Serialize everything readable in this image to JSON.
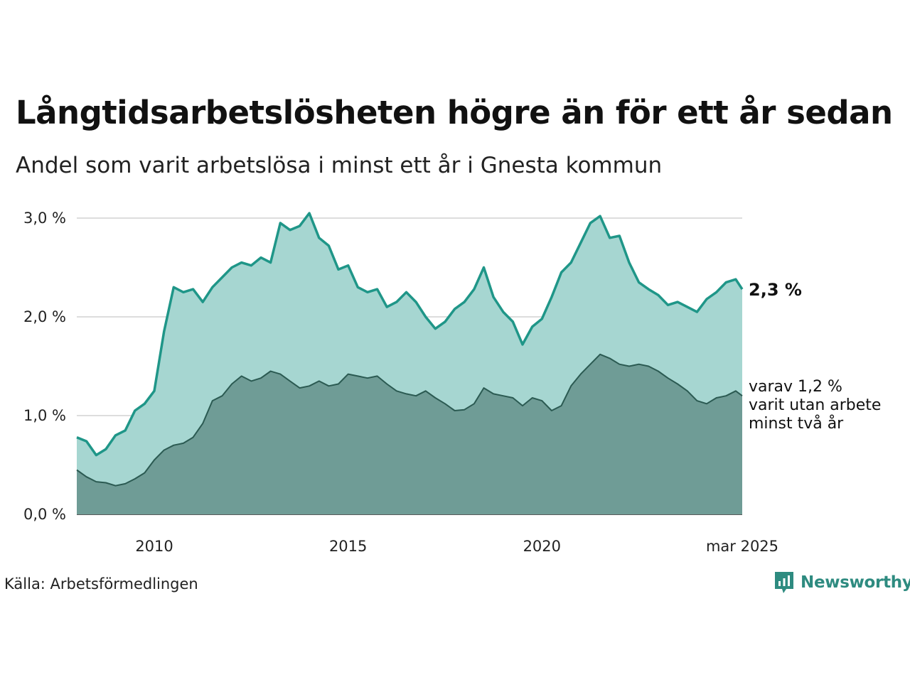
{
  "title": "Långtidsarbetslösheten högre än för ett år sedan",
  "subtitle": "Andel som varit arbetslösa i minst ett år i Gnesta kommun",
  "source": "Källa: Arbetsförmedlingen",
  "brand": "Newsworthy",
  "colors": {
    "main_line": "#1f9688",
    "main_fill": "#a6d6d1",
    "sub_line": "#2b5a52",
    "sub_fill": "#6f9c96",
    "grid": "#dddddd",
    "brand": "#2e8b80"
  },
  "end_labels": {
    "main": "2,3 %",
    "sub_lines": [
      "varav 1,2 %",
      "varit utan arbete",
      "minst två år"
    ]
  },
  "chart_data": {
    "type": "area",
    "x_start": "2008-01",
    "x_end": "2025-03",
    "frequency": "monthly",
    "ylim": [
      0,
      3.0
    ],
    "yticks": [
      {
        "value": 0,
        "label": "0,0 %"
      },
      {
        "value": 1,
        "label": "1,0 %"
      },
      {
        "value": 2,
        "label": "2,0 %"
      },
      {
        "value": 3,
        "label": "3,0 %"
      }
    ],
    "xticks": [
      {
        "date": "2010-01",
        "label": "2010"
      },
      {
        "date": "2015-01",
        "label": "2015"
      },
      {
        "date": "2020-01",
        "label": "2020"
      },
      {
        "date": "2025-03",
        "label": "mar 2025"
      }
    ],
    "grid": true,
    "series": [
      {
        "name": "",
        "points": [
          [
            "2008-01",
            0.78
          ],
          [
            "2008-04",
            0.74
          ],
          [
            "2008-07",
            0.6
          ],
          [
            "2008-10",
            0.66
          ],
          [
            "2009-01",
            0.8
          ],
          [
            "2009-04",
            0.85
          ],
          [
            "2009-07",
            1.05
          ],
          [
            "2009-10",
            1.12
          ],
          [
            "2010-01",
            1.25
          ],
          [
            "2010-04",
            1.85
          ],
          [
            "2010-07",
            2.3
          ],
          [
            "2010-10",
            2.25
          ],
          [
            "2011-01",
            2.28
          ],
          [
            "2011-04",
            2.15
          ],
          [
            "2011-07",
            2.3
          ],
          [
            "2011-10",
            2.4
          ],
          [
            "2012-01",
            2.5
          ],
          [
            "2012-04",
            2.55
          ],
          [
            "2012-07",
            2.52
          ],
          [
            "2012-10",
            2.6
          ],
          [
            "2013-01",
            2.55
          ],
          [
            "2013-04",
            2.95
          ],
          [
            "2013-07",
            2.88
          ],
          [
            "2013-10",
            2.92
          ],
          [
            "2014-01",
            3.05
          ],
          [
            "2014-04",
            2.8
          ],
          [
            "2014-07",
            2.72
          ],
          [
            "2014-10",
            2.48
          ],
          [
            "2015-01",
            2.52
          ],
          [
            "2015-04",
            2.3
          ],
          [
            "2015-07",
            2.25
          ],
          [
            "2015-10",
            2.28
          ],
          [
            "2016-01",
            2.1
          ],
          [
            "2016-04",
            2.15
          ],
          [
            "2016-07",
            2.25
          ],
          [
            "2016-10",
            2.15
          ],
          [
            "2017-01",
            2.0
          ],
          [
            "2017-04",
            1.88
          ],
          [
            "2017-07",
            1.95
          ],
          [
            "2017-10",
            2.08
          ],
          [
            "2018-01",
            2.15
          ],
          [
            "2018-04",
            2.28
          ],
          [
            "2018-07",
            2.5
          ],
          [
            "2018-10",
            2.2
          ],
          [
            "2019-01",
            2.05
          ],
          [
            "2019-04",
            1.95
          ],
          [
            "2019-07",
            1.72
          ],
          [
            "2019-10",
            1.9
          ],
          [
            "2020-01",
            1.98
          ],
          [
            "2020-04",
            2.2
          ],
          [
            "2020-07",
            2.45
          ],
          [
            "2020-10",
            2.55
          ],
          [
            "2021-01",
            2.75
          ],
          [
            "2021-04",
            2.95
          ],
          [
            "2021-07",
            3.02
          ],
          [
            "2021-10",
            2.8
          ],
          [
            "2022-01",
            2.82
          ],
          [
            "2022-04",
            2.55
          ],
          [
            "2022-07",
            2.35
          ],
          [
            "2022-10",
            2.28
          ],
          [
            "2023-01",
            2.22
          ],
          [
            "2023-04",
            2.12
          ],
          [
            "2023-07",
            2.15
          ],
          [
            "2023-10",
            2.1
          ],
          [
            "2024-01",
            2.05
          ],
          [
            "2024-04",
            2.18
          ],
          [
            "2024-07",
            2.25
          ],
          [
            "2024-10",
            2.35
          ],
          [
            "2025-01",
            2.38
          ],
          [
            "2025-03",
            2.28
          ]
        ]
      },
      {
        "name": "",
        "points": [
          [
            "2008-01",
            0.45
          ],
          [
            "2008-04",
            0.38
          ],
          [
            "2008-07",
            0.33
          ],
          [
            "2008-10",
            0.32
          ],
          [
            "2009-01",
            0.29
          ],
          [
            "2009-04",
            0.31
          ],
          [
            "2009-07",
            0.36
          ],
          [
            "2009-10",
            0.42
          ],
          [
            "2010-01",
            0.55
          ],
          [
            "2010-04",
            0.65
          ],
          [
            "2010-07",
            0.7
          ],
          [
            "2010-10",
            0.72
          ],
          [
            "2011-01",
            0.78
          ],
          [
            "2011-04",
            0.92
          ],
          [
            "2011-07",
            1.15
          ],
          [
            "2011-10",
            1.2
          ],
          [
            "2012-01",
            1.32
          ],
          [
            "2012-04",
            1.4
          ],
          [
            "2012-07",
            1.35
          ],
          [
            "2012-10",
            1.38
          ],
          [
            "2013-01",
            1.45
          ],
          [
            "2013-04",
            1.42
          ],
          [
            "2013-07",
            1.35
          ],
          [
            "2013-10",
            1.28
          ],
          [
            "2014-01",
            1.3
          ],
          [
            "2014-04",
            1.35
          ],
          [
            "2014-07",
            1.3
          ],
          [
            "2014-10",
            1.32
          ],
          [
            "2015-01",
            1.42
          ],
          [
            "2015-04",
            1.4
          ],
          [
            "2015-07",
            1.38
          ],
          [
            "2015-10",
            1.4
          ],
          [
            "2016-01",
            1.32
          ],
          [
            "2016-04",
            1.25
          ],
          [
            "2016-07",
            1.22
          ],
          [
            "2016-10",
            1.2
          ],
          [
            "2017-01",
            1.25
          ],
          [
            "2017-04",
            1.18
          ],
          [
            "2017-07",
            1.12
          ],
          [
            "2017-10",
            1.05
          ],
          [
            "2018-01",
            1.06
          ],
          [
            "2018-04",
            1.12
          ],
          [
            "2018-07",
            1.28
          ],
          [
            "2018-10",
            1.22
          ],
          [
            "2019-01",
            1.2
          ],
          [
            "2019-04",
            1.18
          ],
          [
            "2019-07",
            1.1
          ],
          [
            "2019-10",
            1.18
          ],
          [
            "2020-01",
            1.15
          ],
          [
            "2020-04",
            1.05
          ],
          [
            "2020-07",
            1.1
          ],
          [
            "2020-10",
            1.3
          ],
          [
            "2021-01",
            1.42
          ],
          [
            "2021-04",
            1.52
          ],
          [
            "2021-07",
            1.62
          ],
          [
            "2021-10",
            1.58
          ],
          [
            "2022-01",
            1.52
          ],
          [
            "2022-04",
            1.5
          ],
          [
            "2022-07",
            1.52
          ],
          [
            "2022-10",
            1.5
          ],
          [
            "2023-01",
            1.45
          ],
          [
            "2023-04",
            1.38
          ],
          [
            "2023-07",
            1.32
          ],
          [
            "2023-10",
            1.25
          ],
          [
            "2024-01",
            1.15
          ],
          [
            "2024-04",
            1.12
          ],
          [
            "2024-07",
            1.18
          ],
          [
            "2024-10",
            1.2
          ],
          [
            "2025-01",
            1.25
          ],
          [
            "2025-03",
            1.2
          ]
        ]
      }
    ]
  }
}
